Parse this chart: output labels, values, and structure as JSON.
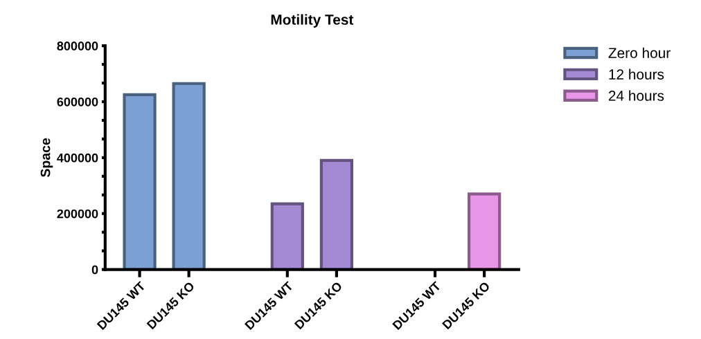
{
  "chart_data": {
    "type": "bar",
    "title": "Motility Test",
    "ylabel": "Space",
    "categories": [
      "DU145 WT",
      "DU145 KO",
      null,
      "DU145 WT",
      "DU145 KO",
      null,
      "DU145 WT",
      "DU145 KO"
    ],
    "series": [
      {
        "name": "Zero hour",
        "color": "#7ca0d4",
        "values": [
          625000,
          665000,
          null,
          null,
          null,
          null,
          null,
          null
        ]
      },
      {
        "name": "12 hours",
        "color": "#a48ad4",
        "values": [
          null,
          null,
          null,
          235000,
          390000,
          null,
          null,
          null
        ]
      },
      {
        "name": "24 hours",
        "color": "#e897e8",
        "values": [
          null,
          null,
          null,
          null,
          null,
          null,
          null,
          270000
        ]
      }
    ],
    "ylim": [
      0,
      800000
    ],
    "yticks": [
      0,
      {
        "value": 66667,
        "label": null
      },
      {
        "value": 133333,
        "label": null
      },
      200000,
      {
        "value": 266667,
        "label": null
      },
      {
        "value": 333333,
        "label": null
      },
      400000,
      {
        "value": 466667,
        "label": null
      },
      {
        "value": 533333,
        "label": null
      },
      600000,
      {
        "value": 666667,
        "label": null
      },
      {
        "value": 733333,
        "label": null
      },
      800000
    ],
    "grid": false,
    "legend": "top right"
  }
}
